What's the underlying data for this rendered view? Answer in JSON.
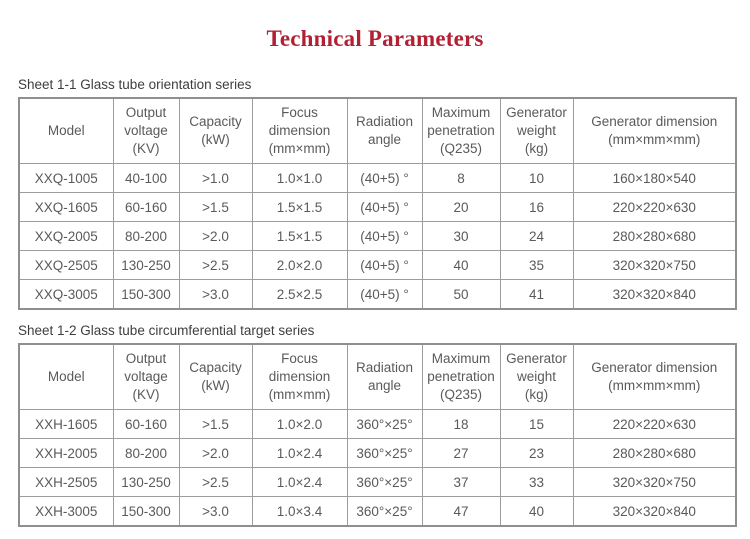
{
  "title": "Technical Parameters",
  "colors": {
    "title_red": "#b22133",
    "table_text": "#5a5a5a",
    "caption_text": "#3e3e3e",
    "border_gray": "#9c9c9c"
  },
  "tables": [
    {
      "caption": "Sheet 1-1 Glass tube orientation series",
      "headers": [
        "Model",
        "Output\nvoltage\n(KV)",
        "Capacity\n(kW)",
        "Focus\ndimension\n(mm×mm)",
        "Radiation\nangle",
        "Maximum\npenetration\n(Q235)",
        "Generator\nweight\n(kg)",
        "Generator dimension\n(mm×mm×mm)"
      ],
      "rows": [
        [
          "XXQ-1005",
          "40-100",
          ">1.0",
          "1.0×1.0",
          "(40+5) °",
          "8",
          "10",
          "160×180×540"
        ],
        [
          "XXQ-1605",
          "60-160",
          ">1.5",
          "1.5×1.5",
          "(40+5) °",
          "20",
          "16",
          "220×220×630"
        ],
        [
          "XXQ-2005",
          "80-200",
          ">2.0",
          "1.5×1.5",
          "(40+5) °",
          "30",
          "24",
          "280×280×680"
        ],
        [
          "XXQ-2505",
          "130-250",
          ">2.5",
          "2.0×2.0",
          "(40+5) °",
          "40",
          "35",
          "320×320×750"
        ],
        [
          "XXQ-3005",
          "150-300",
          ">3.0",
          "2.5×2.5",
          "(40+5) °",
          "50",
          "41",
          "320×320×840"
        ]
      ]
    },
    {
      "caption": "Sheet 1-2 Glass tube circumferential target series",
      "headers": [
        "Model",
        "Output\nvoltage\n(KV)",
        "Capacity\n(kW)",
        "Focus\ndimension\n(mm×mm)",
        "Radiation\nangle",
        "Maximum\npenetration\n(Q235)",
        "Generator\nweight\n(kg)",
        "Generator dimension\n(mm×mm×mm)"
      ],
      "rows": [
        [
          "XXH-1605",
          "60-160",
          ">1.5",
          "1.0×2.0",
          "360°×25°",
          "18",
          "15",
          "220×220×630"
        ],
        [
          "XXH-2005",
          "80-200",
          ">2.0",
          "1.0×2.4",
          "360°×25°",
          "27",
          "23",
          "280×280×680"
        ],
        [
          "XXH-2505",
          "130-250",
          ">2.5",
          "1.0×2.4",
          "360°×25°",
          "37",
          "33",
          "320×320×750"
        ],
        [
          "XXH-3005",
          "150-300",
          ">3.0",
          "1.0×3.4",
          "360°×25°",
          "47",
          "40",
          "320×320×840"
        ]
      ]
    }
  ]
}
